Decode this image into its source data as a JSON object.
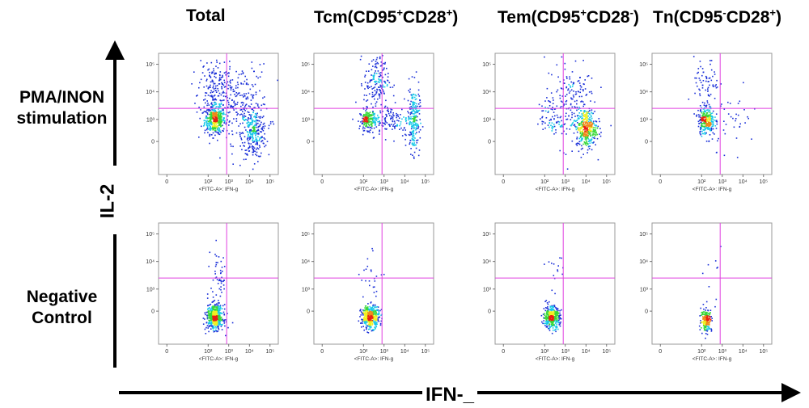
{
  "figure": {
    "column_titles": [
      {
        "base": "Total",
        "parts": []
      },
      {
        "base": "Tcm(CD95",
        "parts": [
          {
            "sup": "+"
          },
          {
            "text": "CD28"
          },
          {
            "sup": "+"
          },
          {
            "text": ")"
          }
        ]
      },
      {
        "base": "Tem(CD95",
        "parts": [
          {
            "sup": "+"
          },
          {
            "text": "CD28"
          },
          {
            "sup": "-"
          },
          {
            "text": ")"
          }
        ]
      },
      {
        "base": "Tn(CD95",
        "parts": [
          {
            "sup": "-"
          },
          {
            "text": "CD28"
          },
          {
            "sup": "+"
          },
          {
            "text": ")"
          }
        ]
      }
    ],
    "row_labels": [
      "PMA/INON stimulation",
      "Negative Control"
    ],
    "row_label_lines": [
      [
        "PMA/INON",
        "stimulation"
      ],
      [
        "Negative",
        "Control"
      ]
    ],
    "y_axis_label": "IL-2",
    "x_axis_label": "IFN-_",
    "axis_caption": "<FITC-A>: IFN-g",
    "colors": {
      "gate": "#e040e0",
      "arrow": "#000000",
      "dense_high": "#e82010",
      "dense_low": "#1a2fd8"
    }
  },
  "chart_data": {
    "type": "scatter",
    "description": "2x4 grid of flow cytometry density plots",
    "x_axis": {
      "label": "<FITC-A>: IFN-g",
      "ticks": [
        "0",
        "10²",
        "10³",
        "10⁴",
        "10⁵"
      ],
      "scale": "biexponential"
    },
    "y_axis": {
      "label": "IL-2",
      "ticks": [
        "0",
        "10³",
        "10⁴",
        "10⁵"
      ],
      "scale": "biexponential"
    },
    "gate": {
      "x_log": 2.9,
      "y_log": 3.4
    },
    "panels": [
      {
        "row": "PMA/INON stimulation",
        "column": "Total",
        "clusters": [
          {
            "x": 2.3,
            "y": 3.0,
            "sx": 0.25,
            "sy": 0.25,
            "n": 420
          },
          {
            "x": 4.2,
            "y": 2.5,
            "sx": 0.3,
            "sy": 0.45,
            "n": 260
          },
          {
            "x": 2.2,
            "y": 4.2,
            "sx": 0.35,
            "sy": 0.5,
            "n": 140
          },
          {
            "x": 3.5,
            "y": 3.6,
            "sx": 0.7,
            "sy": 0.7,
            "n": 250
          }
        ]
      },
      {
        "row": "PMA/INON stimulation",
        "column": "Tcm(CD95+CD28+)",
        "clusters": [
          {
            "x": 2.2,
            "y": 3.0,
            "sx": 0.2,
            "sy": 0.18,
            "n": 200
          },
          {
            "x": 4.4,
            "y": 3.0,
            "sx": 0.15,
            "sy": 0.6,
            "n": 230
          },
          {
            "x": 2.6,
            "y": 4.4,
            "sx": 0.3,
            "sy": 0.5,
            "n": 170
          },
          {
            "x": 3.3,
            "y": 3.0,
            "sx": 0.5,
            "sy": 0.3,
            "n": 120
          }
        ]
      },
      {
        "row": "PMA/INON stimulation",
        "column": "Tem(CD95+CD28-)",
        "clusters": [
          {
            "x": 4.0,
            "y": 2.7,
            "sx": 0.25,
            "sy": 0.35,
            "n": 360
          },
          {
            "x": 3.2,
            "y": 3.6,
            "sx": 0.6,
            "sy": 0.8,
            "n": 200
          },
          {
            "x": 2.3,
            "y": 3.0,
            "sx": 0.3,
            "sy": 0.3,
            "n": 60
          }
        ]
      },
      {
        "row": "PMA/INON stimulation",
        "column": "Tn(CD95-CD28+)",
        "clusters": [
          {
            "x": 2.2,
            "y": 3.0,
            "sx": 0.2,
            "sy": 0.25,
            "n": 280
          },
          {
            "x": 2.2,
            "y": 4.2,
            "sx": 0.3,
            "sy": 0.5,
            "n": 70
          },
          {
            "x": 3.5,
            "y": 3.0,
            "sx": 0.6,
            "sy": 0.5,
            "n": 40
          }
        ]
      },
      {
        "row": "Negative Control",
        "column": "Total",
        "clusters": [
          {
            "x": 2.3,
            "y": 2.0,
            "sx": 0.2,
            "sy": 0.22,
            "n": 520
          },
          {
            "x": 2.5,
            "y": 3.4,
            "sx": 0.2,
            "sy": 0.6,
            "n": 50
          }
        ]
      },
      {
        "row": "Negative Control",
        "column": "Tcm(CD95+CD28+)",
        "clusters": [
          {
            "x": 2.3,
            "y": 2.0,
            "sx": 0.22,
            "sy": 0.2,
            "n": 420
          },
          {
            "x": 2.4,
            "y": 3.5,
            "sx": 0.3,
            "sy": 0.5,
            "n": 25
          }
        ]
      },
      {
        "row": "Negative Control",
        "column": "Tem(CD95+CD28-)",
        "clusters": [
          {
            "x": 2.3,
            "y": 2.0,
            "sx": 0.2,
            "sy": 0.2,
            "n": 400
          },
          {
            "x": 2.6,
            "y": 3.8,
            "sx": 0.3,
            "sy": 0.5,
            "n": 15
          }
        ]
      },
      {
        "row": "Negative Control",
        "column": "Tn(CD95-CD28+)",
        "clusters": [
          {
            "x": 2.2,
            "y": 1.9,
            "sx": 0.13,
            "sy": 0.2,
            "n": 180
          },
          {
            "x": 2.5,
            "y": 3.5,
            "sx": 0.3,
            "sy": 0.6,
            "n": 10
          }
        ]
      }
    ]
  }
}
